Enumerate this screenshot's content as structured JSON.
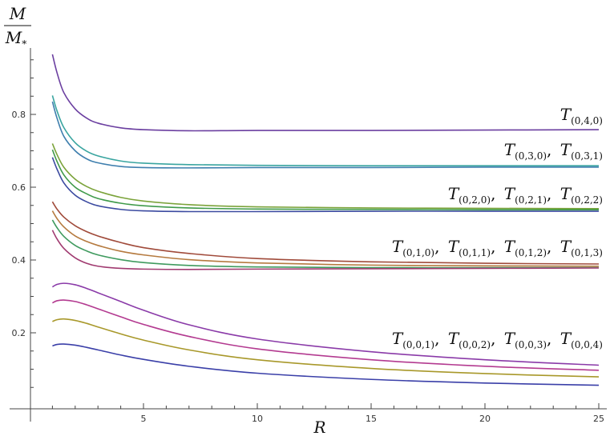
{
  "chart_data": {
    "type": "line",
    "xlabel": "R",
    "ylabel_num": "M",
    "ylabel_den": "M*",
    "xlim": [
      0,
      25.5
    ],
    "ylim": [
      0,
      1.0
    ],
    "x_ticks": [
      5,
      10,
      15,
      20,
      25
    ],
    "y_ticks": [
      0.2,
      0.4,
      0.6,
      0.8
    ],
    "x_tick_labels": [
      "5",
      "10",
      "15",
      "20",
      "25"
    ],
    "y_tick_labels": [
      "0.2",
      "0.4",
      "0.6",
      "0.8"
    ],
    "grid": false,
    "groups": [
      {
        "label": "T(0,4,0)",
        "terms": [
          [
            "T",
            "(0,4,0)"
          ]
        ],
        "series": [
          {
            "color": "#6b3fa0",
            "points": [
              [
                1.0,
                0.965
              ],
              [
                1.2,
                0.915
              ],
              [
                1.5,
                0.86
              ],
              [
                2.0,
                0.815
              ],
              [
                2.5,
                0.79
              ],
              [
                3.0,
                0.776
              ],
              [
                4.0,
                0.763
              ],
              [
                5.0,
                0.758
              ],
              [
                7.0,
                0.755
              ],
              [
                10.0,
                0.756
              ],
              [
                15.0,
                0.756
              ],
              [
                20.0,
                0.757
              ],
              [
                25.0,
                0.758
              ]
            ]
          }
        ]
      },
      {
        "label": "T(0,3,0), T(0,3,1)",
        "terms": [
          [
            "T",
            "(0,3,0)"
          ],
          [
            "T",
            "(0,3,1)"
          ]
        ],
        "series": [
          {
            "color": "#3aa5a0",
            "points": [
              [
                1.0,
                0.852
              ],
              [
                1.2,
                0.81
              ],
              [
                1.5,
                0.764
              ],
              [
                2.0,
                0.722
              ],
              [
                2.5,
                0.699
              ],
              [
                3.0,
                0.686
              ],
              [
                4.0,
                0.672
              ],
              [
                5.0,
                0.666
              ],
              [
                7.0,
                0.662
              ],
              [
                10.0,
                0.66
              ],
              [
                15.0,
                0.659
              ],
              [
                20.0,
                0.659
              ],
              [
                25.0,
                0.659
              ]
            ]
          },
          {
            "color": "#3f7fae",
            "points": [
              [
                1.0,
                0.835
              ],
              [
                1.2,
                0.79
              ],
              [
                1.5,
                0.74
              ],
              [
                2.0,
                0.7
              ],
              [
                2.5,
                0.678
              ],
              [
                3.0,
                0.667
              ],
              [
                4.0,
                0.657
              ],
              [
                5.0,
                0.654
              ],
              [
                7.0,
                0.653
              ],
              [
                10.0,
                0.654
              ],
              [
                15.0,
                0.654
              ],
              [
                20.0,
                0.655
              ],
              [
                25.0,
                0.655
              ]
            ]
          }
        ]
      },
      {
        "label": "T(0,2,0), T(0,2,1), T(0,2,2)",
        "terms": [
          [
            "T",
            "(0,2,0)"
          ],
          [
            "T",
            "(0,2,1)"
          ],
          [
            "T",
            "(0,2,2)"
          ]
        ],
        "series": [
          {
            "color": "#7ba33a",
            "points": [
              [
                1.0,
                0.72
              ],
              [
                1.2,
                0.69
              ],
              [
                1.5,
                0.655
              ],
              [
                2.0,
                0.622
              ],
              [
                2.5,
                0.602
              ],
              [
                3.0,
                0.589
              ],
              [
                4.0,
                0.572
              ],
              [
                5.0,
                0.562
              ],
              [
                7.0,
                0.552
              ],
              [
                10.0,
                0.546
              ],
              [
                15.0,
                0.543
              ],
              [
                20.0,
                0.542
              ],
              [
                25.0,
                0.541
              ]
            ]
          },
          {
            "color": "#3f9a4a",
            "points": [
              [
                1.0,
                0.703
              ],
              [
                1.2,
                0.671
              ],
              [
                1.5,
                0.634
              ],
              [
                2.0,
                0.6
              ],
              [
                2.5,
                0.582
              ],
              [
                3.0,
                0.569
              ],
              [
                4.0,
                0.556
              ],
              [
                5.0,
                0.549
              ],
              [
                7.0,
                0.543
              ],
              [
                10.0,
                0.54
              ],
              [
                15.0,
                0.539
              ],
              [
                20.0,
                0.538
              ],
              [
                25.0,
                0.538
              ]
            ]
          },
          {
            "color": "#3b4aa0",
            "points": [
              [
                1.0,
                0.682
              ],
              [
                1.2,
                0.65
              ],
              [
                1.5,
                0.612
              ],
              [
                2.0,
                0.578
              ],
              [
                2.5,
                0.56
              ],
              [
                3.0,
                0.549
              ],
              [
                4.0,
                0.539
              ],
              [
                5.0,
                0.535
              ],
              [
                7.0,
                0.533
              ],
              [
                10.0,
                0.533
              ],
              [
                15.0,
                0.534
              ],
              [
                20.0,
                0.534
              ],
              [
                25.0,
                0.534
              ]
            ]
          }
        ]
      },
      {
        "label": "T(0,1,0), T(0,1,1), T(0,1,2), T(0,1,3)",
        "terms": [
          [
            "T",
            "(0,1,0)"
          ],
          [
            "T",
            "(0,1,1)"
          ],
          [
            "T",
            "(0,1,2)"
          ],
          [
            "T",
            "(0,1,3)"
          ]
        ],
        "series": [
          {
            "color": "#a04a3a",
            "points": [
              [
                1.0,
                0.56
              ],
              [
                1.2,
                0.54
              ],
              [
                1.5,
                0.518
              ],
              [
                2.0,
                0.494
              ],
              [
                2.5,
                0.478
              ],
              [
                3.0,
                0.466
              ],
              [
                4.0,
                0.448
              ],
              [
                5.0,
                0.434
              ],
              [
                7.0,
                0.418
              ],
              [
                10.0,
                0.404
              ],
              [
                15.0,
                0.395
              ],
              [
                20.0,
                0.391
              ],
              [
                25.0,
                0.389
              ]
            ]
          },
          {
            "color": "#b57a3f",
            "points": [
              [
                1.0,
                0.535
              ],
              [
                1.2,
                0.514
              ],
              [
                1.5,
                0.491
              ],
              [
                2.0,
                0.466
              ],
              [
                2.5,
                0.451
              ],
              [
                3.0,
                0.44
              ],
              [
                4.0,
                0.424
              ],
              [
                5.0,
                0.414
              ],
              [
                7.0,
                0.401
              ],
              [
                10.0,
                0.392
              ],
              [
                15.0,
                0.386
              ],
              [
                20.0,
                0.384
              ],
              [
                25.0,
                0.383
              ]
            ]
          },
          {
            "color": "#3f9a5e",
            "points": [
              [
                1.0,
                0.51
              ],
              [
                1.2,
                0.489
              ],
              [
                1.5,
                0.465
              ],
              [
                2.0,
                0.44
              ],
              [
                2.5,
                0.425
              ],
              [
                3.0,
                0.414
              ],
              [
                4.0,
                0.401
              ],
              [
                5.0,
                0.393
              ],
              [
                7.0,
                0.385
              ],
              [
                10.0,
                0.381
              ],
              [
                15.0,
                0.379
              ],
              [
                20.0,
                0.379
              ],
              [
                25.0,
                0.379
              ]
            ]
          },
          {
            "color": "#a03a70",
            "points": [
              [
                1.0,
                0.482
              ],
              [
                1.2,
                0.458
              ],
              [
                1.5,
                0.432
              ],
              [
                2.0,
                0.406
              ],
              [
                2.5,
                0.391
              ],
              [
                3.0,
                0.383
              ],
              [
                4.0,
                0.377
              ],
              [
                5.0,
                0.375
              ],
              [
                7.0,
                0.374
              ],
              [
                10.0,
                0.375
              ],
              [
                15.0,
                0.376
              ],
              [
                20.0,
                0.377
              ],
              [
                25.0,
                0.378
              ]
            ]
          }
        ]
      },
      {
        "label": "T(0,0,1), T(0,0,2), T(0,0,3), T(0,0,4)",
        "terms": [
          [
            "T",
            "(0,0,1)"
          ],
          [
            "T",
            "(0,0,2)"
          ],
          [
            "T",
            "(0,0,3)"
          ],
          [
            "T",
            "(0,0,4)"
          ]
        ],
        "series": [
          {
            "color": "#8a3aa8",
            "points": [
              [
                1.0,
                0.326
              ],
              [
                1.2,
                0.333
              ],
              [
                1.5,
                0.336
              ],
              [
                2.0,
                0.332
              ],
              [
                2.5,
                0.322
              ],
              [
                3.0,
                0.31
              ],
              [
                4.0,
                0.286
              ],
              [
                5.0,
                0.262
              ],
              [
                7.0,
                0.222
              ],
              [
                10.0,
                0.183
              ],
              [
                15.0,
                0.148
              ],
              [
                20.0,
                0.126
              ],
              [
                25.0,
                0.111
              ]
            ]
          },
          {
            "color": "#b33a90",
            "points": [
              [
                1.0,
                0.282
              ],
              [
                1.2,
                0.288
              ],
              [
                1.5,
                0.29
              ],
              [
                2.0,
                0.286
              ],
              [
                2.5,
                0.277
              ],
              [
                3.0,
                0.266
              ],
              [
                4.0,
                0.244
              ],
              [
                5.0,
                0.223
              ],
              [
                7.0,
                0.19
              ],
              [
                10.0,
                0.156
              ],
              [
                15.0,
                0.126
              ],
              [
                20.0,
                0.108
              ],
              [
                25.0,
                0.097
              ]
            ]
          },
          {
            "color": "#a8982a",
            "points": [
              [
                1.0,
                0.231
              ],
              [
                1.2,
                0.236
              ],
              [
                1.5,
                0.238
              ],
              [
                2.0,
                0.234
              ],
              [
                2.5,
                0.226
              ],
              [
                3.0,
                0.216
              ],
              [
                4.0,
                0.197
              ],
              [
                5.0,
                0.18
              ],
              [
                7.0,
                0.153
              ],
              [
                10.0,
                0.126
              ],
              [
                15.0,
                0.102
              ],
              [
                20.0,
                0.088
              ],
              [
                25.0,
                0.079
              ]
            ]
          },
          {
            "color": "#3a3fa8",
            "points": [
              [
                1.0,
                0.164
              ],
              [
                1.2,
                0.168
              ],
              [
                1.5,
                0.169
              ],
              [
                2.0,
                0.166
              ],
              [
                2.5,
                0.16
              ],
              [
                3.0,
                0.153
              ],
              [
                4.0,
                0.139
              ],
              [
                5.0,
                0.127
              ],
              [
                7.0,
                0.108
              ],
              [
                10.0,
                0.089
              ],
              [
                15.0,
                0.072
              ],
              [
                20.0,
                0.062
              ],
              [
                25.0,
                0.056
              ]
            ]
          }
        ]
      }
    ]
  }
}
